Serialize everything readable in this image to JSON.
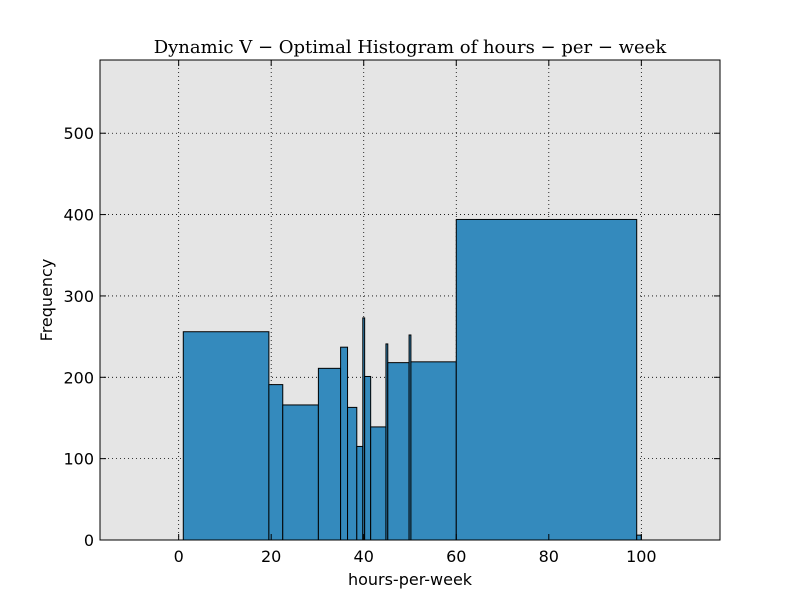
{
  "chart_data": {
    "type": "bar",
    "title": "Dynamic V − Optimal Histogram of hours − per − week",
    "xlabel": "hours-per-week",
    "ylabel": "Frequency",
    "xlim": [
      -17,
      117
    ],
    "ylim": [
      0,
      590
    ],
    "xticks": [
      0,
      20,
      40,
      60,
      80,
      100
    ],
    "yticks": [
      0,
      100,
      200,
      300,
      400,
      500
    ],
    "grid": true,
    "bar_color": "#348abd",
    "edge_color": "#000000",
    "background_color": "#e5e5e5",
    "bins": [
      {
        "x0": 1,
        "x1": 19.5,
        "value": 256
      },
      {
        "x0": 19.5,
        "x1": 22.5,
        "value": 191
      },
      {
        "x0": 22.5,
        "x1": 30.2,
        "value": 166
      },
      {
        "x0": 30.2,
        "x1": 35,
        "value": 211
      },
      {
        "x0": 35,
        "x1": 36.5,
        "value": 237
      },
      {
        "x0": 36.5,
        "x1": 38.5,
        "value": 163
      },
      {
        "x0": 38.5,
        "x1": 39.8,
        "value": 115
      },
      {
        "x0": 39.8,
        "x1": 40.2,
        "value": 273
      },
      {
        "x0": 40.2,
        "x1": 41.5,
        "value": 201
      },
      {
        "x0": 41.5,
        "x1": 44.8,
        "value": 139
      },
      {
        "x0": 44.8,
        "x1": 45.2,
        "value": 241
      },
      {
        "x0": 45.2,
        "x1": 49.8,
        "value": 218
      },
      {
        "x0": 49.8,
        "x1": 50.2,
        "value": 252
      },
      {
        "x0": 50.2,
        "x1": 60,
        "value": 219
      },
      {
        "x0": 60,
        "x1": 99,
        "value": 394
      },
      {
        "x0": 99,
        "x1": 100,
        "value": 6
      }
    ]
  }
}
